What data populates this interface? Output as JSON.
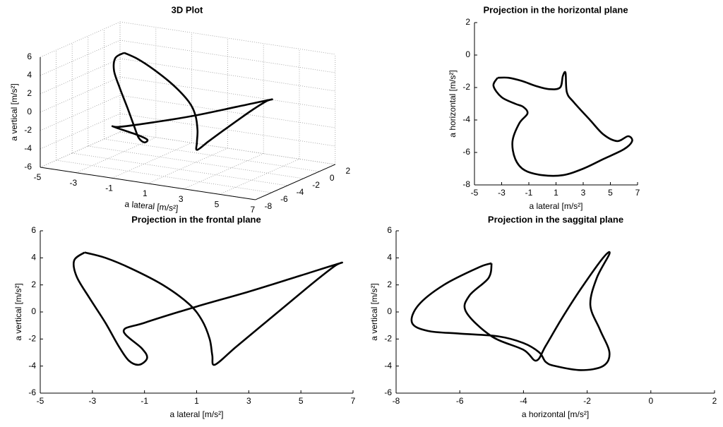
{
  "chart_data": [
    {
      "type": "line3d",
      "title": "3D Plot",
      "x_label": "a lateral [m/s²]",
      "z_label": "a vertical [m/s²]",
      "xlim": [
        -5,
        7
      ],
      "ylim": [
        -8,
        2
      ],
      "zlim": [
        -6,
        6
      ],
      "xticks": [
        -5,
        -3,
        -1,
        1,
        3,
        5,
        7
      ],
      "yticks": [
        -8,
        -6,
        -4,
        -2,
        0,
        2
      ],
      "zticks": [
        -6,
        -4,
        -2,
        0,
        2,
        4,
        6
      ],
      "grid": true,
      "color": "#000000",
      "x": [
        -3.3,
        -2.5,
        -1.5,
        -0.3,
        0.7,
        1.2,
        1.5,
        1.6,
        1.7,
        2.5,
        3.5,
        4.5,
        5.5,
        6.3,
        6.5,
        5.0,
        3.0,
        1.0,
        -1.0,
        -1.8,
        -1.1,
        -0.9,
        -1.2,
        -1.6,
        -2.0,
        -2.5,
        -3.1,
        -3.6,
        -3.7,
        -3.3
      ],
      "y": [
        -1.3,
        -1.4,
        -1.6,
        -1.9,
        -2.2,
        -2.5,
        -2.9,
        -3.2,
        -3.4,
        -3.8,
        -4.3,
        -4.7,
        -5.0,
        -5.1,
        -5.0,
        -5.8,
        -6.8,
        -7.3,
        -7.0,
        -6.0,
        -4.5,
        -3.8,
        -3.5,
        -3.3,
        -3.0,
        -2.7,
        -2.3,
        -1.9,
        -1.5,
        -1.3
      ],
      "z": [
        4.4,
        4.0,
        3.2,
        2.0,
        0.6,
        -0.6,
        -2.0,
        -3.2,
        -3.9,
        -2.6,
        -1.0,
        0.6,
        2.2,
        3.4,
        3.6,
        2.7,
        1.5,
        0.4,
        -0.8,
        -1.4,
        -2.7,
        -3.4,
        -3.9,
        -3.6,
        -2.5,
        -0.8,
        1.0,
        2.6,
        3.8,
        4.4
      ]
    },
    {
      "type": "line",
      "title": "Projection in the horizontal plane",
      "x_label": "a lateral [m/s²]",
      "y_label": "a horizontal [m/s²]",
      "xlim": [
        -5,
        7
      ],
      "ylim": [
        -8,
        2
      ],
      "xticks": [
        -5,
        -3,
        -1,
        1,
        3,
        5,
        7
      ],
      "yticks": [
        -8,
        -6,
        -4,
        -2,
        0,
        2
      ],
      "x": [
        -3.3,
        -2.5,
        -1.5,
        -0.5,
        0.5,
        1.3,
        1.5,
        1.7,
        1.8,
        2.3,
        3.5,
        4.5,
        5.5,
        6.3,
        6.6,
        6.0,
        4.5,
        3.0,
        1.5,
        0,
        -1.3,
        -2.0,
        -2.2,
        -1.7,
        -1.1,
        -1.4,
        -2.0,
        -3.0,
        -3.6,
        -3.3
      ],
      "series": [
        {
          "color": "#000000",
          "values": [
            -1.4,
            -1.4,
            -1.6,
            -1.9,
            -2.1,
            -2.0,
            -1.3,
            -1.1,
            -2.3,
            -2.9,
            -4.0,
            -4.9,
            -5.3,
            -5.0,
            -5.3,
            -5.8,
            -6.4,
            -7.0,
            -7.4,
            -7.4,
            -7.1,
            -6.4,
            -5.3,
            -4.2,
            -3.6,
            -3.2,
            -3.0,
            -2.6,
            -1.9,
            -1.4
          ]
        }
      ]
    },
    {
      "type": "line",
      "title": "Projection in the frontal plane",
      "x_label": "a lateral [m/s²]",
      "y_label": "a vertical [m/s²]",
      "xlim": [
        -5,
        7
      ],
      "ylim": [
        -6,
        6
      ],
      "xticks": [
        -5,
        -3,
        -1,
        1,
        3,
        5,
        7
      ],
      "yticks": [
        -6,
        -4,
        -2,
        0,
        2,
        4,
        6
      ],
      "x": [
        -3.3,
        -2.5,
        -1.5,
        -0.3,
        0.7,
        1.2,
        1.5,
        1.6,
        1.7,
        2.5,
        3.5,
        4.5,
        5.5,
        6.3,
        6.5,
        5.0,
        3.0,
        1.0,
        -1.0,
        -1.8,
        -1.1,
        -0.9,
        -1.2,
        -1.6,
        -2.0,
        -2.5,
        -3.1,
        -3.6,
        -3.7,
        -3.3
      ],
      "series": [
        {
          "color": "#000000",
          "values": [
            4.4,
            4.0,
            3.2,
            2.0,
            0.6,
            -0.6,
            -2.0,
            -3.2,
            -3.9,
            -2.6,
            -1.0,
            0.6,
            2.2,
            3.4,
            3.6,
            2.7,
            1.5,
            0.4,
            -0.8,
            -1.4,
            -2.7,
            -3.4,
            -3.9,
            -3.6,
            -2.5,
            -0.8,
            1.0,
            2.6,
            3.8,
            4.4
          ]
        }
      ]
    },
    {
      "type": "line",
      "title": "Projection in the saggital plane",
      "x_label": "a horizontal [m/s²]",
      "y_label": "a vertical [m/s²]",
      "xlim": [
        -8,
        2
      ],
      "ylim": [
        -6,
        6
      ],
      "xticks": [
        -8,
        -6,
        -4,
        -2,
        0,
        2
      ],
      "yticks": [
        -6,
        -4,
        -2,
        0,
        2,
        4,
        6
      ],
      "x": [
        -5.0,
        -5.4,
        -6.5,
        -7.3,
        -7.5,
        -7.0,
        -6.0,
        -4.8,
        -4.0,
        -3.5,
        -3.3,
        -3.0,
        -2.2,
        -1.5,
        -1.3,
        -1.6,
        -1.9,
        -1.7,
        -1.3,
        -1.5,
        -2.2,
        -2.8,
        -3.3,
        -3.6,
        -4.0,
        -5.0,
        -5.8,
        -5.7,
        -5.1,
        -5.0
      ],
      "series": [
        {
          "color": "#000000",
          "values": [
            3.6,
            3.3,
            2.0,
            0.5,
            -0.8,
            -1.4,
            -1.6,
            -1.8,
            -2.3,
            -3.0,
            -3.7,
            -4.0,
            -4.3,
            -4.0,
            -3.0,
            -1.3,
            0.5,
            2.5,
            4.3,
            4.0,
            1.7,
            -0.5,
            -2.5,
            -3.6,
            -2.8,
            -1.8,
            0.0,
            1.2,
            2.5,
            3.6
          ]
        }
      ]
    }
  ]
}
